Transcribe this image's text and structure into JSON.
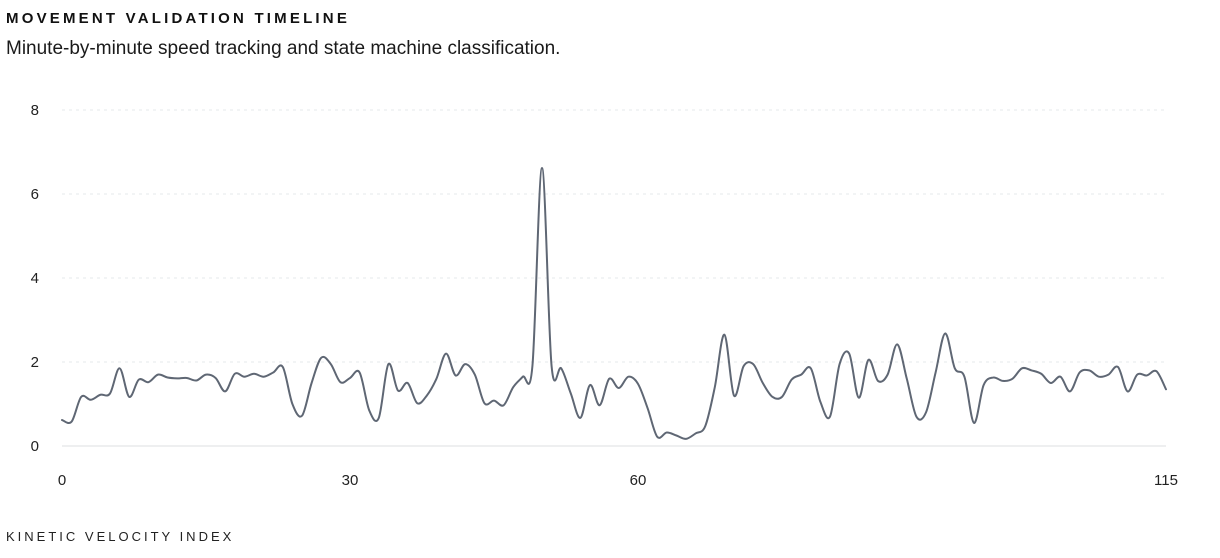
{
  "header": {
    "title": "MOVEMENT VALIDATION TIMELINE",
    "subtitle": "Minute-by-minute speed tracking and state machine classification."
  },
  "footer": {
    "label": "KINETIC VELOCITY INDEX"
  },
  "colors": {
    "line": "#5f6774",
    "grid": "#e6e8eb",
    "axis": "#e3e5e8",
    "text": "#222222"
  },
  "chart_data": {
    "type": "line",
    "title": "",
    "xlabel": "",
    "ylabel": "",
    "xlim": [
      0,
      115
    ],
    "ylim": [
      0,
      8
    ],
    "x_ticks": [
      0,
      30,
      60,
      115
    ],
    "y_ticks": [
      0,
      2,
      4,
      6,
      8
    ],
    "grid": "horizontal dashed",
    "legend": "none",
    "series": [
      {
        "values": [
          0.62,
          0.58,
          1.17,
          1.1,
          1.22,
          1.25,
          1.85,
          1.17,
          1.58,
          1.52,
          1.7,
          1.63,
          1.61,
          1.62,
          1.56,
          1.7,
          1.62,
          1.3,
          1.72,
          1.65,
          1.72,
          1.65,
          1.75,
          1.88,
          1.0,
          0.72,
          1.5,
          2.1,
          1.95,
          1.52,
          1.62,
          1.75,
          0.85,
          0.67,
          1.95,
          1.32,
          1.5,
          1.02,
          1.2,
          1.6,
          2.2,
          1.68,
          1.95,
          1.7,
          1.02,
          1.08,
          0.97,
          1.4,
          1.65,
          1.9,
          6.62,
          1.9,
          1.85,
          1.25,
          0.67,
          1.45,
          0.97,
          1.6,
          1.38,
          1.65,
          1.48,
          0.9,
          0.22,
          0.32,
          0.25,
          0.17,
          0.3,
          0.47,
          1.4,
          2.65,
          1.2,
          1.9,
          1.95,
          1.5,
          1.17,
          1.17,
          1.58,
          1.7,
          1.85,
          1.05,
          0.7,
          1.95,
          2.2,
          1.15,
          2.05,
          1.55,
          1.7,
          2.42,
          1.6,
          0.7,
          0.8,
          1.75,
          2.68,
          1.85,
          1.65,
          0.55,
          1.45,
          1.63,
          1.55,
          1.6,
          1.85,
          1.8,
          1.72,
          1.5,
          1.65,
          1.3,
          1.75,
          1.8,
          1.65,
          1.7,
          1.88,
          1.3,
          1.7,
          1.68,
          1.78,
          1.35
        ]
      }
    ]
  }
}
